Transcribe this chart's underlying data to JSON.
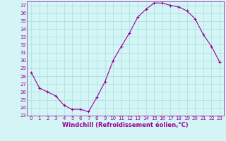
{
  "x": [
    0,
    1,
    2,
    3,
    4,
    5,
    6,
    7,
    8,
    9,
    10,
    11,
    12,
    13,
    14,
    15,
    16,
    17,
    18,
    19,
    20,
    21,
    22,
    23
  ],
  "y": [
    28.5,
    26.5,
    26.0,
    25.5,
    24.3,
    23.8,
    23.8,
    23.5,
    25.3,
    27.3,
    30.0,
    31.8,
    33.5,
    35.5,
    36.5,
    37.3,
    37.3,
    37.0,
    36.8,
    36.3,
    35.3,
    33.3,
    31.8,
    29.8
  ],
  "xlim": [
    -0.5,
    23.5
  ],
  "ylim": [
    23,
    37.5
  ],
  "yticks": [
    23,
    24,
    25,
    26,
    27,
    28,
    29,
    30,
    31,
    32,
    33,
    34,
    35,
    36,
    37
  ],
  "xticks": [
    0,
    1,
    2,
    3,
    4,
    5,
    6,
    7,
    8,
    9,
    10,
    11,
    12,
    13,
    14,
    15,
    16,
    17,
    18,
    19,
    20,
    21,
    22,
    23
  ],
  "xlabel": "Windchill (Refroidissement éolien,°C)",
  "line_color": "#990099",
  "marker": "+",
  "bg_color": "#d4f5f5",
  "grid_color": "#aadddd",
  "tick_color": "#990099",
  "label_color": "#990099",
  "tick_fontsize": 5.0,
  "xlabel_fontsize": 6.0
}
